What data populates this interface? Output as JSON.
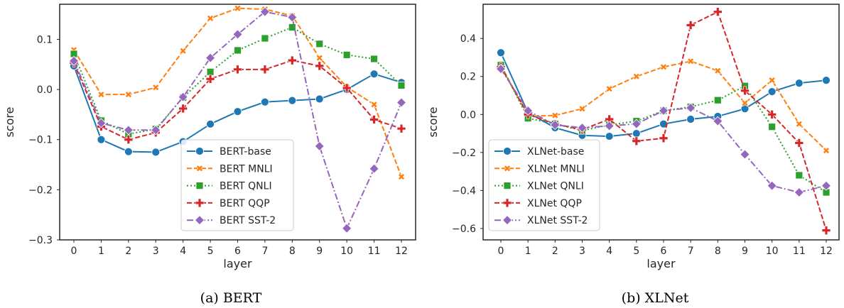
{
  "chart_data": [
    {
      "type": "line",
      "caption": "(a) BERT",
      "xlabel": "layer",
      "ylabel": "score",
      "x": [
        0,
        1,
        2,
        3,
        4,
        5,
        6,
        7,
        8,
        9,
        10,
        11,
        12
      ],
      "xticks": [
        "0",
        "1",
        "2",
        "3",
        "4",
        "5",
        "6",
        "7",
        "8",
        "9",
        "10",
        "11",
        "12"
      ],
      "ylim": [
        -0.3,
        0.17
      ],
      "yticks": [
        -0.3,
        -0.2,
        -0.1,
        0.0,
        0.1
      ],
      "ytick_labels": [
        "−0.3",
        "−0.2",
        "−0.1",
        "0.0",
        "0.1"
      ],
      "grid": false,
      "legend_placement": "lower-center",
      "series": [
        {
          "name": "BERT-base",
          "color": "#1f77b4",
          "marker": "circle",
          "dash": "solid",
          "values": [
            0.047,
            -0.1,
            -0.124,
            -0.125,
            -0.104,
            -0.069,
            -0.044,
            -0.025,
            -0.022,
            -0.019,
            0.0,
            0.031,
            0.014
          ]
        },
        {
          "name": "BERT MNLI",
          "color": "#ff7f0e",
          "marker": "x",
          "dash": "dashed",
          "values": [
            0.079,
            -0.01,
            -0.01,
            0.004,
            0.077,
            0.142,
            0.162,
            0.16,
            0.147,
            0.063,
            0.005,
            -0.03,
            -0.174
          ]
        },
        {
          "name": "BERT QNLI",
          "color": "#2ca02c",
          "marker": "square",
          "dash": "dotted",
          "values": [
            0.071,
            -0.062,
            -0.089,
            -0.079,
            -0.016,
            0.035,
            0.078,
            0.102,
            0.124,
            0.091,
            0.069,
            0.061,
            0.008
          ]
        },
        {
          "name": "BERT QQP",
          "color": "#d62728",
          "marker": "plus",
          "dash": "dashed",
          "values": [
            0.053,
            -0.074,
            -0.1,
            -0.086,
            -0.038,
            0.021,
            0.04,
            0.04,
            0.058,
            0.047,
            0.003,
            -0.06,
            -0.078
          ]
        },
        {
          "name": "BERT SST-2",
          "color": "#9467bd",
          "marker": "diamond",
          "dash": "dashdot",
          "values": [
            0.057,
            -0.067,
            -0.081,
            -0.081,
            -0.015,
            0.063,
            0.11,
            0.155,
            0.144,
            -0.113,
            -0.277,
            -0.158,
            -0.026
          ]
        }
      ]
    },
    {
      "type": "line",
      "caption": "(b) XLNet",
      "xlabel": "layer",
      "ylabel": "score",
      "x": [
        0,
        1,
        2,
        3,
        4,
        5,
        6,
        7,
        8,
        9,
        10,
        11,
        12
      ],
      "xticks": [
        "0",
        "1",
        "2",
        "3",
        "4",
        "5",
        "6",
        "7",
        "8",
        "9",
        "10",
        "11",
        "12"
      ],
      "ylim": [
        -0.66,
        0.58
      ],
      "yticks": [
        -0.6,
        -0.4,
        -0.2,
        0.0,
        0.2,
        0.4
      ],
      "ytick_labels": [
        "−0.6",
        "−0.4",
        "−0.2",
        "0.0",
        "0.2",
        "0.4"
      ],
      "grid": false,
      "legend_placement": "lower-left",
      "series": [
        {
          "name": "XLNet-base",
          "color": "#1f77b4",
          "marker": "circle",
          "dash": "solid",
          "values": [
            0.325,
            0.01,
            -0.07,
            -0.11,
            -0.115,
            -0.1,
            -0.05,
            -0.025,
            -0.01,
            0.03,
            0.12,
            0.165,
            0.18
          ]
        },
        {
          "name": "XLNet MNLI",
          "color": "#ff7f0e",
          "marker": "x",
          "dash": "dashed",
          "values": [
            0.26,
            -0.01,
            -0.005,
            0.03,
            0.135,
            0.2,
            0.25,
            0.28,
            0.23,
            0.06,
            0.18,
            -0.05,
            -0.19
          ]
        },
        {
          "name": "XLNet QNLI",
          "color": "#2ca02c",
          "marker": "square",
          "dash": "dotted",
          "values": [
            0.26,
            -0.02,
            -0.05,
            -0.085,
            -0.055,
            -0.035,
            0.02,
            0.04,
            0.075,
            0.15,
            -0.065,
            -0.32,
            -0.41
          ]
        },
        {
          "name": "XLNet QQP",
          "color": "#d62728",
          "marker": "plus",
          "dash": "dashed",
          "values": [
            0.25,
            0.0,
            -0.05,
            -0.08,
            -0.025,
            -0.14,
            -0.125,
            0.47,
            0.54,
            0.125,
            0.0,
            -0.15,
            -0.61
          ]
        },
        {
          "name": "XLNet SST-2",
          "color": "#9467bd",
          "marker": "diamond",
          "dash": "dashdot",
          "values": [
            0.24,
            0.02,
            -0.055,
            -0.07,
            -0.06,
            -0.05,
            0.02,
            0.035,
            -0.035,
            -0.21,
            -0.375,
            -0.41,
            -0.375
          ]
        }
      ]
    }
  ]
}
